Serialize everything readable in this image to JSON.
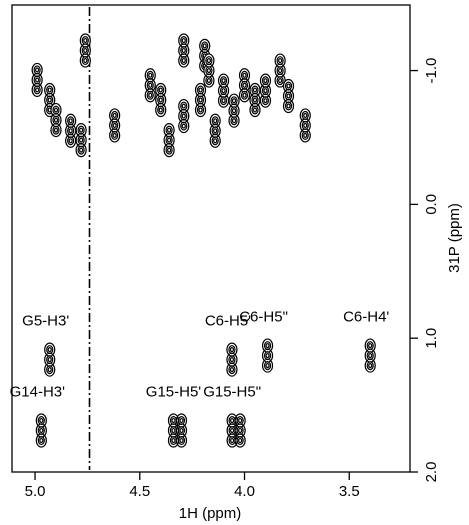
{
  "chart_data": {
    "type": "contour",
    "xlabel": "1H (ppm)",
    "ylabel": "31P (ppm)",
    "xlim": [
      5.11,
      3.21
    ],
    "ylim": [
      -1.49,
      2.0
    ],
    "xticks": [
      {
        "value": 5.0,
        "label": "5.0"
      },
      {
        "value": 4.5,
        "label": "4.5"
      },
      {
        "value": 4.0,
        "label": "4.0"
      },
      {
        "value": 3.5,
        "label": "3.5"
      }
    ],
    "yticks": [
      {
        "value": -1.0,
        "label": "-1.0"
      },
      {
        "value": 0.0,
        "label": "0.0"
      },
      {
        "value": 1.0,
        "label": "1.0"
      },
      {
        "value": 2.0,
        "label": "2.0"
      }
    ],
    "reference_line": 4.74,
    "labeled_peaks": {
      "labels": [
        "G5-H3'",
        "G14-H3'",
        "G15-H5'",
        "G15-H5\"",
        "C6-H5'",
        "C6-H5\"",
        "C6-H4'"
      ],
      "x": [
        4.93,
        4.97,
        4.32,
        4.04,
        4.06,
        3.89,
        3.4
      ],
      "y": [
        1.16,
        1.69,
        1.69,
        1.69,
        1.16,
        1.13,
        1.13
      ]
    },
    "peaks": {
      "x": [
        4.99,
        4.93,
        4.9,
        4.83,
        4.78,
        4.76,
        4.62,
        4.45,
        4.4,
        4.36,
        4.29,
        4.29,
        4.21,
        4.19,
        4.17,
        4.14,
        4.1,
        4.05,
        4.0,
        3.95,
        3.9,
        3.83,
        3.79,
        3.71
      ],
      "y": [
        -0.93,
        -0.78,
        -0.63,
        -0.55,
        -0.48,
        -1.15,
        -0.59,
        -0.89,
        -0.78,
        -0.48,
        -1.15,
        -0.66,
        -0.78,
        -1.11,
        -1.0,
        -0.55,
        -0.85,
        -0.7,
        -0.89,
        -0.78,
        -0.85,
        -1.0,
        -0.81,
        -0.59
      ]
    }
  }
}
